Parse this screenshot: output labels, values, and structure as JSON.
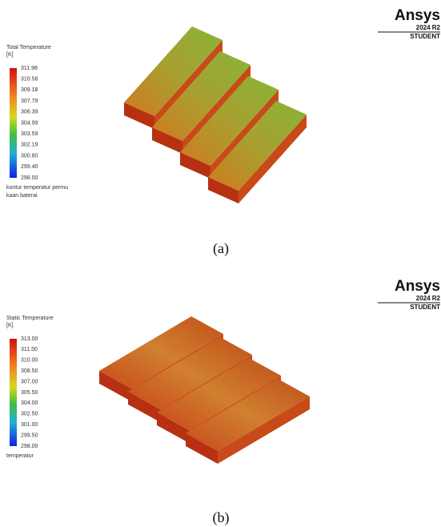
{
  "panels": [
    {
      "logo": {
        "brand": "Ansys",
        "version": "2024 R2",
        "edition": "STUDENT"
      },
      "legend": {
        "title": "Total Temperature",
        "unit": "[K]",
        "labels": [
          "311.98",
          "310.58",
          "309.18",
          "307.79",
          "306.39",
          "304.99",
          "303.59",
          "302.19",
          "300.80",
          "299.40",
          "298.00"
        ],
        "note": [
          "kontur temperatur permu",
          "kaan baterai"
        ]
      },
      "caption": "(a)"
    },
    {
      "logo": {
        "brand": "Ansys",
        "version": "2024 R2",
        "edition": "STUDENT"
      },
      "legend": {
        "title": "Static Temperature",
        "unit": "[K]",
        "labels": [
          "313.00",
          "311.50",
          "310.00",
          "308.50",
          "307.00",
          "305.50",
          "304.00",
          "302.50",
          "301.00",
          "299.50",
          "298.00"
        ],
        "note": [
          "temperatur"
        ]
      },
      "caption": "(b)"
    }
  ]
}
